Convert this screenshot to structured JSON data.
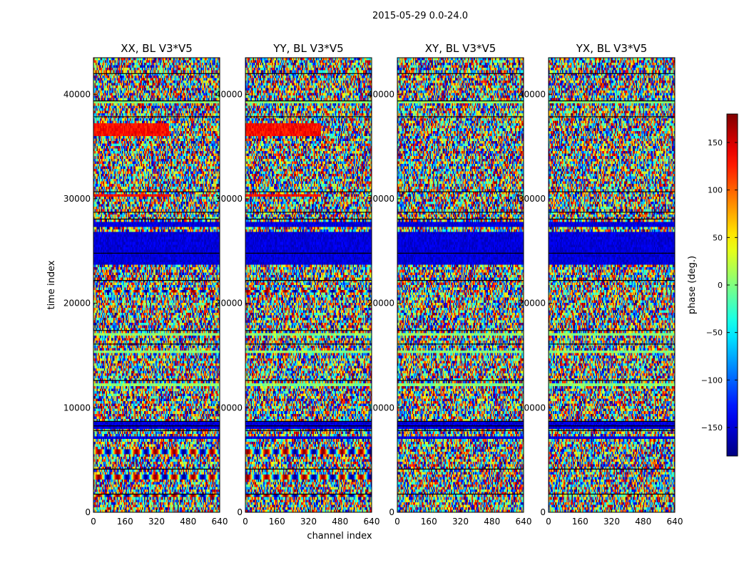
{
  "figure": {
    "suptitle": "2015-05-29 0.0-24.0",
    "xlabel": "channel index",
    "ylabel": "time index"
  },
  "chart_data": {
    "type": "heatmap",
    "xlim": [
      0,
      640
    ],
    "ylim": [
      0,
      43500
    ],
    "x_ticks": [
      0,
      160,
      320,
      480,
      640
    ],
    "y_ticks": [
      0,
      10000,
      20000,
      30000,
      40000
    ],
    "panels": [
      {
        "title": "XX, BL V3*V5"
      },
      {
        "title": "YY, BL V3*V5"
      },
      {
        "title": "XY, BL V3*V5"
      },
      {
        "title": "YX, BL V3*V5"
      }
    ],
    "colorbar": {
      "label": "phase (deg.)",
      "range": [
        -180,
        180
      ],
      "ticks": [
        -150,
        -100,
        -50,
        0,
        50,
        100,
        150
      ],
      "colormap": "jet"
    }
  }
}
